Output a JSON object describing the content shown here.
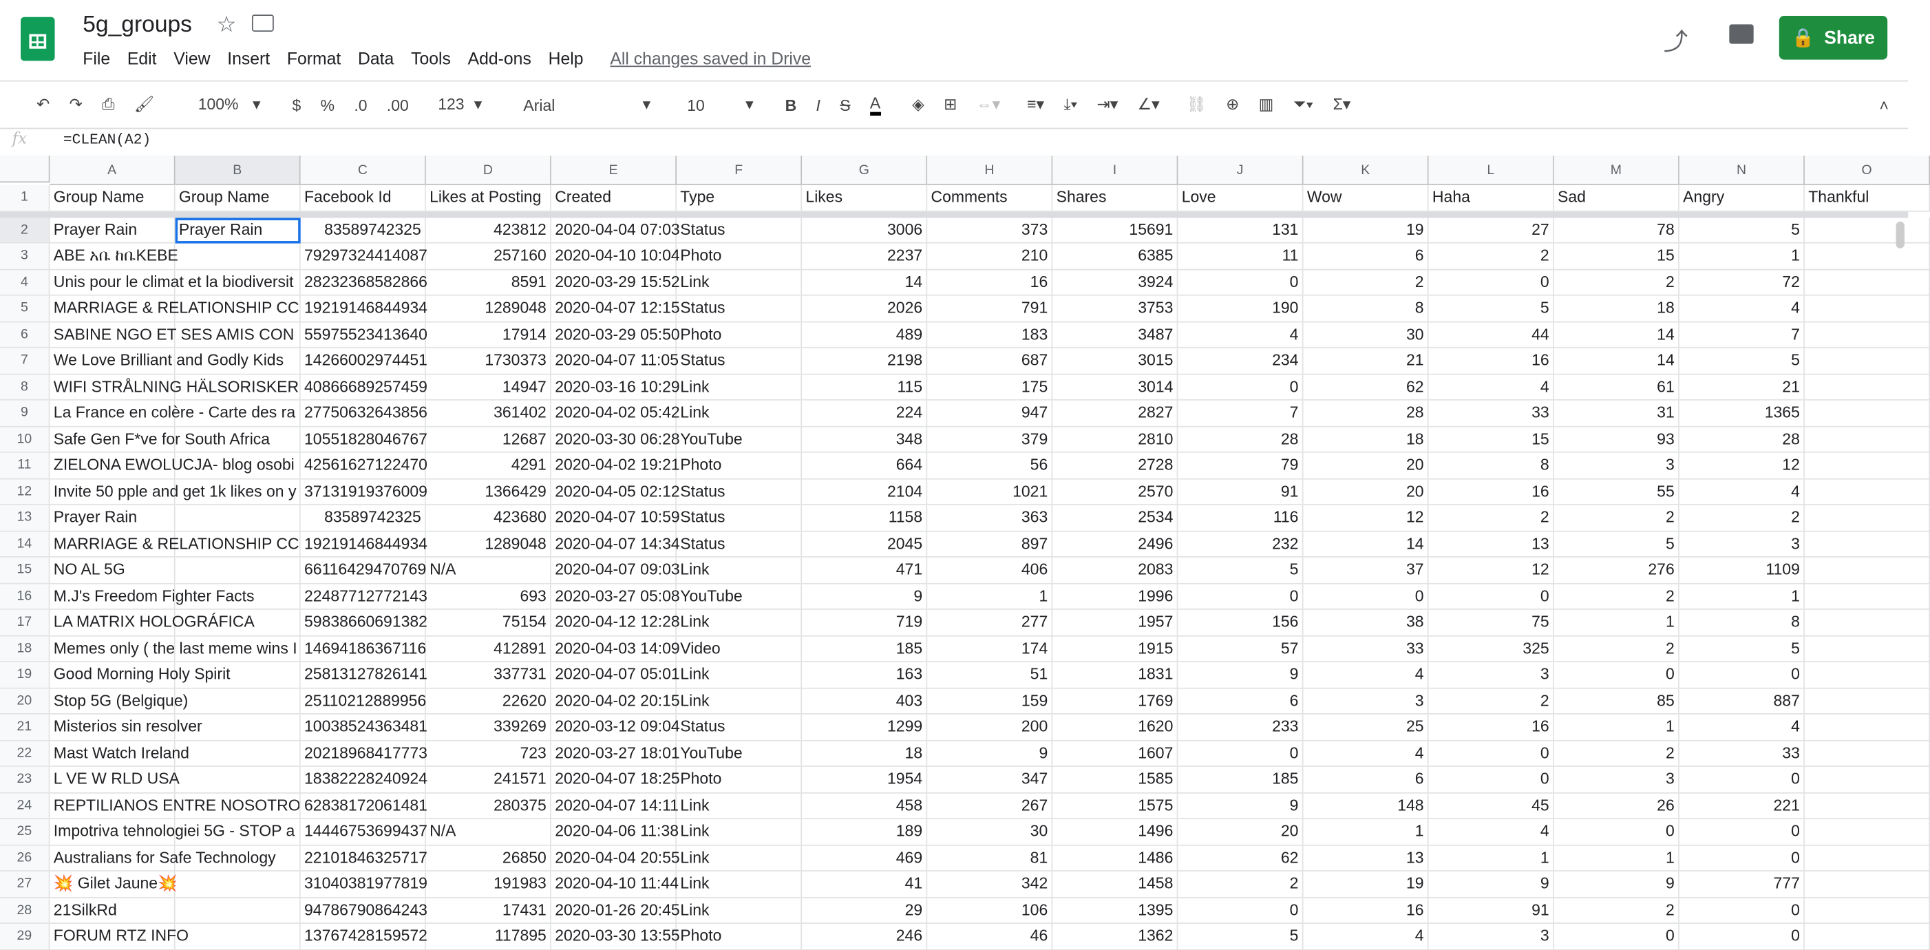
{
  "app": {
    "title": "5g_groups",
    "menu": [
      "File",
      "Edit",
      "View",
      "Insert",
      "Format",
      "Data",
      "Tools",
      "Add-ons",
      "Help"
    ],
    "saved": "All changes saved in Drive",
    "share": "Share",
    "icons": [
      "star-icon",
      "move-icon",
      "trending-icon",
      "comment-icon",
      "lock-icon"
    ]
  },
  "toolbar": {
    "zoom": "100%",
    "currency": "$",
    "percent": "%",
    "dec_less": ".0",
    "dec_more": ".00",
    "format": "123",
    "font": "Arial",
    "size": "10",
    "bold": "B",
    "italic": "I",
    "strike": "S",
    "textcolor": "A"
  },
  "formula": {
    "fx": "fx",
    "value": "=CLEAN(A2)"
  },
  "columns": [
    "A",
    "B",
    "C",
    "D",
    "E",
    "F",
    "G",
    "H",
    "I",
    "J",
    "K",
    "L",
    "M",
    "N",
    "O"
  ],
  "headers": [
    "Group Name",
    "Group Name",
    "Facebook Id",
    "Likes at Posting",
    "Created",
    "Type",
    "Likes",
    "Comments",
    "Shares",
    "Love",
    "Wow",
    "Haha",
    "Sad",
    "Angry",
    "Thankful"
  ],
  "rows": [
    [
      "Prayer Rain",
      "Prayer Rain",
      "83589742325",
      "423812",
      "2020-04-04 07:03",
      "Status",
      "3006",
      "373",
      "15691",
      "131",
      "19",
      "27",
      "78",
      "5",
      ""
    ],
    [
      "ABE አቤ ከቤKEBE",
      "",
      "79297324414087",
      "257160",
      "2020-04-10 10:04",
      "Photo",
      "2237",
      "210",
      "6385",
      "11",
      "6",
      "2",
      "15",
      "1",
      ""
    ],
    [
      "Unis pour le climat et la biodiversit",
      "",
      "28232368582866",
      "8591",
      "2020-03-29 15:52",
      "Link",
      "14",
      "16",
      "3924",
      "0",
      "2",
      "0",
      "2",
      "72",
      ""
    ],
    [
      "MARRIAGE & RELATIONSHIP CC",
      "",
      "19219146844934",
      "1289048",
      "2020-04-07 12:15",
      "Status",
      "2026",
      "791",
      "3753",
      "190",
      "8",
      "5",
      "18",
      "4",
      ""
    ],
    [
      "SABINE NGO ET SES AMIS CON",
      "",
      "55975523413640",
      "17914",
      "2020-03-29 05:50",
      "Photo",
      "489",
      "183",
      "3487",
      "4",
      "30",
      "44",
      "14",
      "7",
      ""
    ],
    [
      "We Love Brilliant and Godly Kids",
      "",
      "14266002974451",
      "1730373",
      "2020-04-07 11:05",
      "Status",
      "2198",
      "687",
      "3015",
      "234",
      "21",
      "16",
      "14",
      "5",
      ""
    ],
    [
      "WIFI STRÅLNING HÄLSORISKER",
      "",
      "40866689257459",
      "14947",
      "2020-03-16 10:29",
      "Link",
      "115",
      "175",
      "3014",
      "0",
      "62",
      "4",
      "61",
      "21",
      ""
    ],
    [
      "La France en colère - Carte des ra",
      "",
      "27750632643856",
      "361402",
      "2020-04-02 05:42",
      "Link",
      "224",
      "947",
      "2827",
      "7",
      "28",
      "33",
      "31",
      "1365",
      ""
    ],
    [
      "Safe Gen F*ve for South Africa",
      "",
      "10551828046767",
      "12687",
      "2020-03-30 06:28",
      "YouTube",
      "348",
      "379",
      "2810",
      "28",
      "18",
      "15",
      "93",
      "28",
      ""
    ],
    [
      "ZIELONA EWOLUCJA- blog osobi",
      "",
      "42561627122470",
      "4291",
      "2020-04-02 19:21",
      "Photo",
      "664",
      "56",
      "2728",
      "79",
      "20",
      "8",
      "3",
      "12",
      ""
    ],
    [
      "Invite 50 pple and get 1k likes on y",
      "",
      "37131919376009",
      "1366429",
      "2020-04-05 02:12",
      "Status",
      "2104",
      "1021",
      "2570",
      "91",
      "20",
      "16",
      "55",
      "4",
      ""
    ],
    [
      "Prayer Rain",
      "",
      "83589742325",
      "423680",
      "2020-04-07 10:59",
      "Status",
      "1158",
      "363",
      "2534",
      "116",
      "12",
      "2",
      "2",
      "2",
      ""
    ],
    [
      "MARRIAGE & RELATIONSHIP CC",
      "",
      "19219146844934",
      "1289048",
      "2020-04-07 14:34",
      "Status",
      "2045",
      "897",
      "2496",
      "232",
      "14",
      "13",
      "5",
      "3",
      ""
    ],
    [
      "NO AL 5G",
      "",
      "66116429470769",
      "N/A",
      "2020-04-07 09:03",
      "Link",
      "471",
      "406",
      "2083",
      "5",
      "37",
      "12",
      "276",
      "1109",
      ""
    ],
    [
      "M.J's Freedom Fighter Facts",
      "",
      "22487712772143",
      "693",
      "2020-03-27 05:08",
      "YouTube",
      "9",
      "1",
      "1996",
      "0",
      "0",
      "0",
      "2",
      "1",
      ""
    ],
    [
      "LA MATRIX HOLOGRÁFICA",
      "",
      "59838660691382",
      "75154",
      "2020-04-12 12:28",
      "Link",
      "719",
      "277",
      "1957",
      "156",
      "38",
      "75",
      "1",
      "8",
      ""
    ],
    [
      "Memes only ( the last meme wins I",
      "",
      "14694186367116",
      "412891",
      "2020-04-03 14:09",
      "Video",
      "185",
      "174",
      "1915",
      "57",
      "33",
      "325",
      "2",
      "5",
      ""
    ],
    [
      "Good Morning Holy Spirit",
      "",
      "25813127826141",
      "337731",
      "2020-04-07 05:01",
      "Link",
      "163",
      "51",
      "1831",
      "9",
      "4",
      "3",
      "0",
      "0",
      ""
    ],
    [
      "Stop 5G (Belgique)",
      "",
      "25110212889956",
      "22620",
      "2020-04-02 20:15",
      "Link",
      "403",
      "159",
      "1769",
      "6",
      "3",
      "2",
      "85",
      "887",
      ""
    ],
    [
      "Misterios sin resolver",
      "",
      "10038524363481",
      "339269",
      "2020-03-12 09:04",
      "Status",
      "1299",
      "200",
      "1620",
      "233",
      "25",
      "16",
      "1",
      "4",
      ""
    ],
    [
      "Mast Watch Ireland",
      "",
      "20218968417773",
      "723",
      "2020-03-27 18:01",
      "YouTube",
      "18",
      "9",
      "1607",
      "0",
      "4",
      "0",
      "2",
      "33",
      ""
    ],
    [
      "L VE W RLD USA",
      "",
      "18382228240924",
      "241571",
      "2020-04-07 18:25",
      "Photo",
      "1954",
      "347",
      "1585",
      "185",
      "6",
      "0",
      "3",
      "0",
      ""
    ],
    [
      "REPTILIANOS ENTRE NOSOTRO",
      "",
      "62838172061481",
      "280375",
      "2020-04-07 14:11",
      "Link",
      "458",
      "267",
      "1575",
      "9",
      "148",
      "45",
      "26",
      "221",
      ""
    ],
    [
      "Impotriva tehnologiei 5G - STOP a",
      "",
      "14446753699437",
      "N/A",
      "2020-04-06 11:38",
      "Link",
      "189",
      "30",
      "1496",
      "20",
      "1",
      "4",
      "0",
      "0",
      ""
    ],
    [
      "Australians for Safe Technology",
      "",
      "22101846325717",
      "26850",
      "2020-04-04 20:55",
      "Link",
      "469",
      "81",
      "1486",
      "62",
      "13",
      "1",
      "1",
      "0",
      ""
    ],
    [
      "💥 Gilet Jaune💥",
      "",
      "31040381977819",
      "191983",
      "2020-04-10 11:44",
      "Link",
      "41",
      "342",
      "1458",
      "2",
      "19",
      "9",
      "9",
      "777",
      ""
    ],
    [
      "21SilkRd",
      "",
      "94786790864243",
      "17431",
      "2020-01-26 20:45",
      "Link",
      "29",
      "106",
      "1395",
      "0",
      "16",
      "91",
      "2",
      "0",
      ""
    ],
    [
      "FORUM RTZ INFO",
      "",
      "13767428159572",
      "117895",
      "2020-03-30 13:55",
      "Photo",
      "246",
      "46",
      "1362",
      "5",
      "4",
      "3",
      "0",
      "0",
      ""
    ]
  ]
}
